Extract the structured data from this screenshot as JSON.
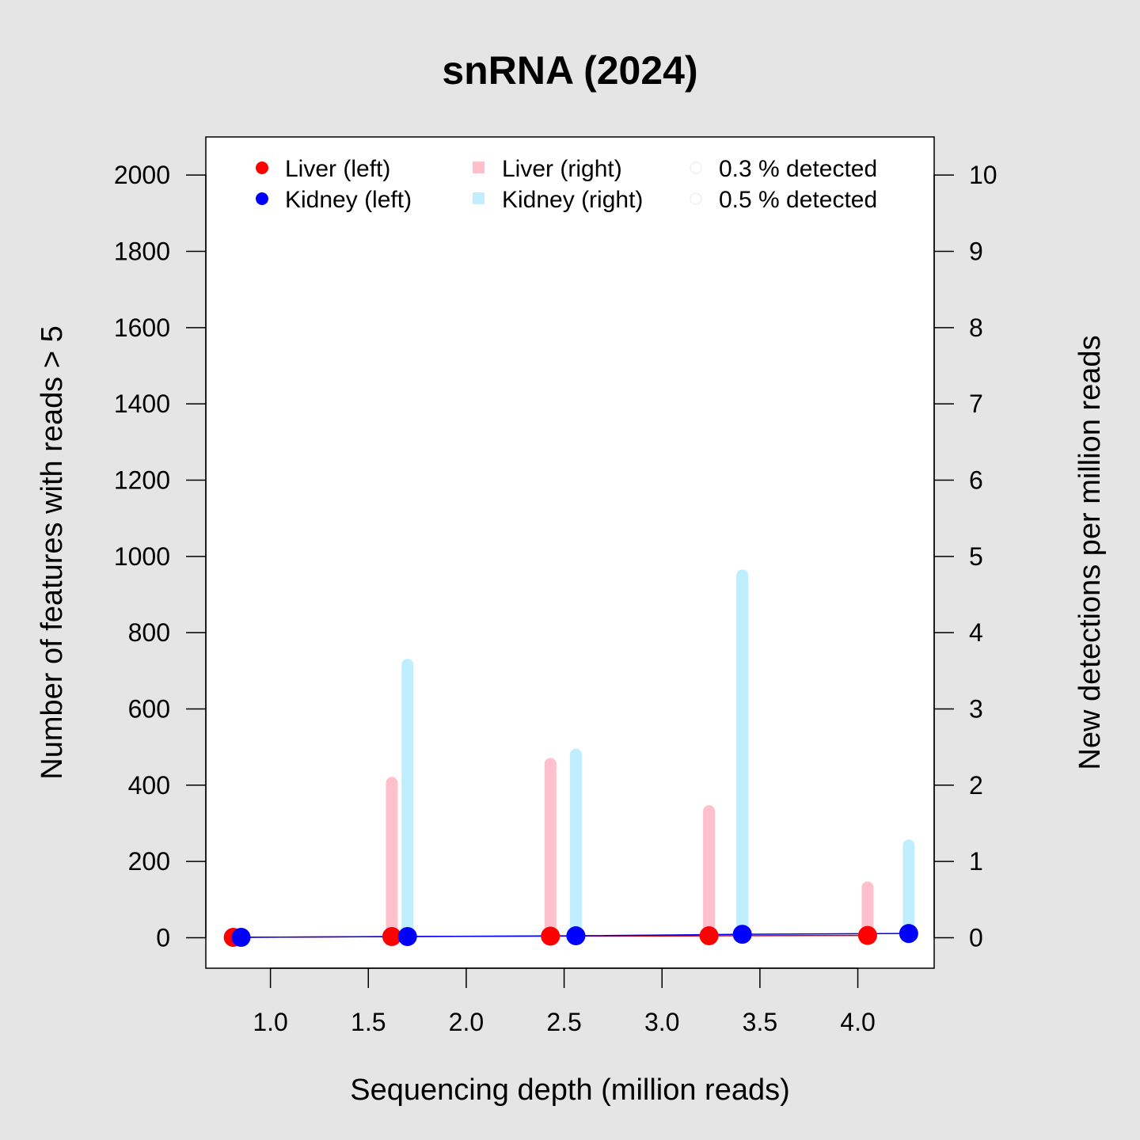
{
  "chart_data": {
    "type": "scatter",
    "title": "snRNA (2024)",
    "xlabel": "Sequencing depth (million reads)",
    "ylabel_left": "Number of features with reads > 5",
    "ylabel_right": "New detections per million reads",
    "xlim": [
      0.67,
      4.39
    ],
    "ylim_left": [
      -80,
      2100
    ],
    "ylim_right": [
      -0.4,
      10.5
    ],
    "x_ticks": [
      "1.0",
      "1.5",
      "2.0",
      "2.5",
      "3.0",
      "3.5",
      "4.0"
    ],
    "y_ticks_left": [
      "0",
      "200",
      "400",
      "600",
      "800",
      "1000",
      "1200",
      "1400",
      "1600",
      "1800",
      "2000"
    ],
    "y_ticks_right": [
      "0",
      "1",
      "2",
      "3",
      "4",
      "5",
      "6",
      "7",
      "8",
      "9",
      "10"
    ],
    "legend": {
      "liver_left": "Liver (left)",
      "kidney_left": "Kidney (left)",
      "liver_right": "Liver (right)",
      "kidney_right": "Kidney (right)",
      "detected_03": "0.3 % detected",
      "detected_05": "0.5 % detected"
    },
    "colors": {
      "liver_left": "#ff0000",
      "kidney_left": "#0000ff",
      "liver_right": "#ffc0cb",
      "kidney_right": "#bfefff",
      "liver_line": "#d00000",
      "kidney_line": "#0000ff"
    },
    "series": [
      {
        "name": "Liver (left)",
        "axis": "left",
        "x": [
          0.81,
          1.62,
          2.43,
          3.24,
          4.05
        ],
        "y": [
          1,
          3,
          4,
          5,
          6
        ]
      },
      {
        "name": "Kidney (left)",
        "axis": "left",
        "x": [
          0.85,
          1.7,
          2.56,
          3.41,
          4.26
        ],
        "y": [
          1,
          3,
          5,
          9,
          11
        ]
      },
      {
        "name": "Liver (right)",
        "axis": "right",
        "x": [
          1.62,
          2.43,
          3.24,
          4.05
        ],
        "y": [
          2.03,
          2.28,
          1.66,
          0.66
        ]
      },
      {
        "name": "Kidney (right)",
        "axis": "right",
        "x": [
          1.7,
          2.56,
          3.41,
          4.26
        ],
        "y": [
          3.58,
          2.4,
          4.75,
          1.21
        ]
      }
    ]
  }
}
